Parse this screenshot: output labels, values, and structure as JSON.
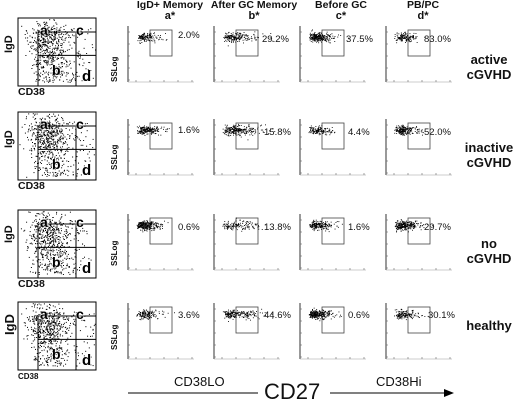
{
  "columns": [
    {
      "title": "IgD+ Memory",
      "marker": "a*"
    },
    {
      "title": "After GC Memory",
      "marker": "b*"
    },
    {
      "title": "Before GC",
      "marker": "c*"
    },
    {
      "title": "PB/PC",
      "marker": "d*"
    }
  ],
  "rows": [
    {
      "label_line1": "active",
      "label_line2": "cGVHD",
      "pcts": [
        "2.0%",
        "29.2%",
        "37.5%",
        "83.0%"
      ]
    },
    {
      "label_line1": "inactive",
      "label_line2": "cGVHD",
      "pcts": [
        "1.6%",
        "15.8%",
        "4.4%",
        "52.0%"
      ]
    },
    {
      "label_line1": "no",
      "label_line2": "cGVHD",
      "pcts": [
        "0.6%",
        "13.8%",
        "1.6%",
        "29.7%"
      ]
    },
    {
      "label_line1": "healthy",
      "label_line2": "",
      "pcts": [
        "3.6%",
        "44.6%",
        "0.6%",
        "30.1%"
      ]
    }
  ],
  "quadrant_letters": [
    "a",
    "b",
    "c",
    "d"
  ],
  "axis": {
    "igd": "IgD",
    "cd38": "CD38",
    "ssc": "SSLog",
    "cd38lo": "CD38LO",
    "cd27": "CD27",
    "cd38hi": "CD38Hi"
  }
}
